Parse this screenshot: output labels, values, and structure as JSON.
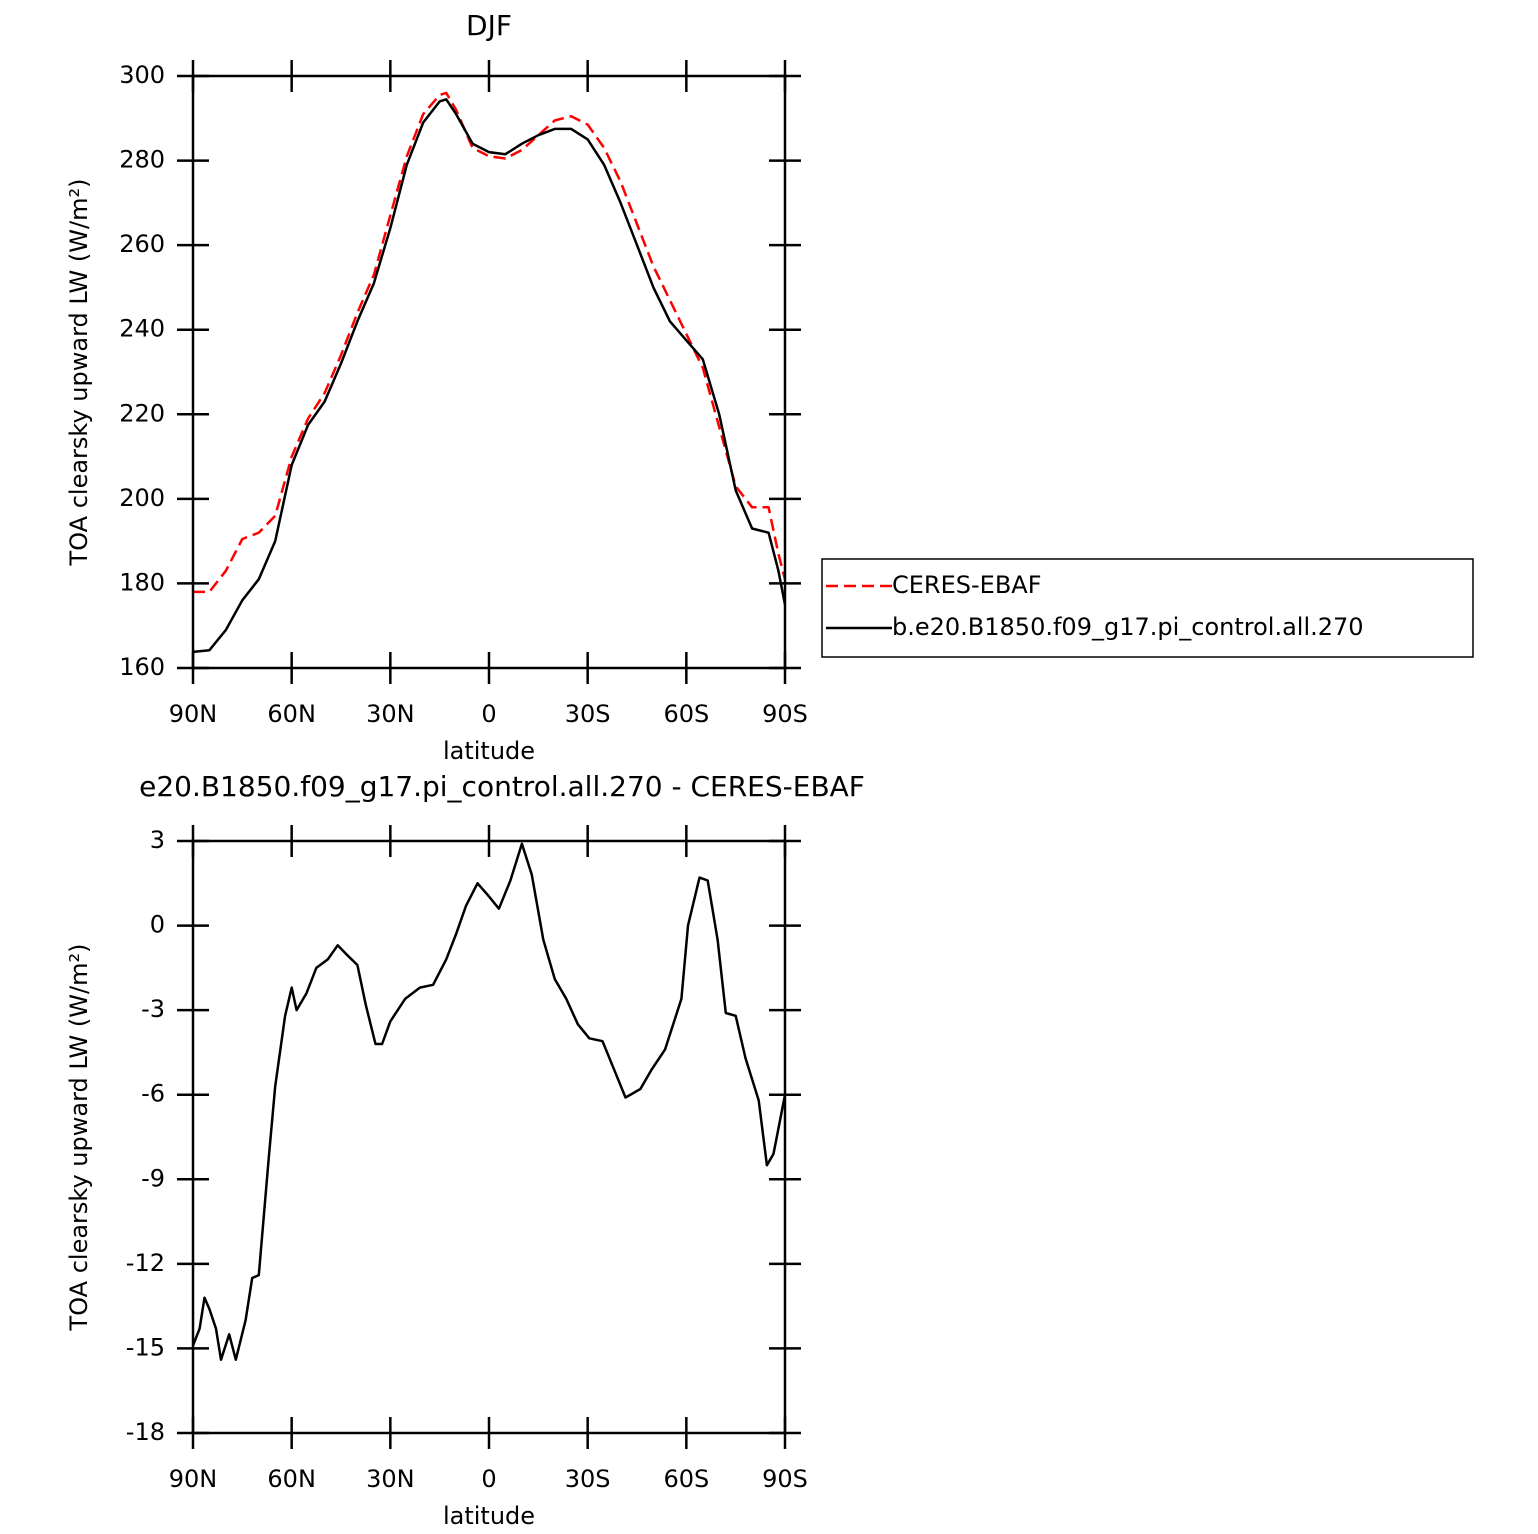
{
  "chart_data": [
    {
      "type": "line",
      "title": "DJF",
      "xlabel": "latitude",
      "ylabel": "TOA clearsky upward LW (W/m²)",
      "x": [
        90,
        85,
        80,
        75,
        70,
        65,
        60,
        55,
        50,
        45,
        40,
        35,
        30,
        25,
        20,
        15,
        13,
        10,
        5,
        0,
        -5,
        -10,
        -15,
        -20,
        -25,
        -30,
        -35,
        -40,
        -45,
        -50,
        -55,
        -60,
        -65,
        -70,
        -75,
        -80,
        -85,
        -88,
        -90
      ],
      "series": [
        {
          "name": "CERES-EBAF",
          "color": "#ff0000",
          "dash": "dashed",
          "values": [
            178,
            178,
            183,
            190.5,
            192,
            196,
            210,
            219,
            225,
            234,
            244,
            253,
            267,
            281,
            291,
            295.5,
            296,
            292,
            283,
            281,
            280.5,
            282.5,
            286,
            289.5,
            290.5,
            288.5,
            283,
            275,
            265,
            255,
            247,
            239,
            231,
            217,
            203,
            198,
            198,
            187,
            181
          ]
        },
        {
          "name": "b.e20.B1850.f09_g17.pi_control.all.270",
          "color": "#000000",
          "dash": "solid",
          "values": [
            163.8,
            164.2,
            169,
            176,
            181,
            190,
            208,
            217.5,
            223,
            232,
            242,
            251,
            264,
            279,
            289,
            294,
            294.5,
            291,
            284,
            282,
            281.5,
            284,
            286,
            287.5,
            287.5,
            285,
            279,
            270,
            260,
            250,
            242,
            237.5,
            233,
            220,
            202,
            193,
            192,
            183,
            175
          ]
        }
      ],
      "xlim": [
        90,
        -90
      ],
      "xticks": [
        {
          "value": 90,
          "label": "90N"
        },
        {
          "value": 60,
          "label": "60N"
        },
        {
          "value": 30,
          "label": "30N"
        },
        0,
        {
          "value": -30,
          "label": "30S"
        },
        {
          "value": -60,
          "label": "60S"
        },
        {
          "value": -90,
          "label": "90S"
        }
      ],
      "ylim": [
        160,
        300
      ],
      "yticks": [
        160,
        180,
        200,
        220,
        240,
        260,
        280,
        300
      ],
      "grid": false,
      "legend": "outside-right"
    },
    {
      "type": "line",
      "title": "e20.B1850.f09_g17.pi_control.all.270 - CERES-EBAF",
      "xlabel": "latitude",
      "ylabel": "TOA clearsky upward LW (W/m²)",
      "x": [
        90,
        88,
        86.5,
        85,
        83,
        81.5,
        79,
        77,
        74,
        72,
        70,
        67,
        65,
        62,
        60,
        58.5,
        55.5,
        52.5,
        49,
        46,
        43.5,
        40,
        37.5,
        34.5,
        32.5,
        30,
        25.5,
        21,
        17,
        13,
        10,
        7,
        3.5,
        0.5,
        -3,
        -6.5,
        -10,
        -13,
        -16.5,
        -20,
        -23.5,
        -27,
        -30.5,
        -34.5,
        -38,
        -41.5,
        -46,
        -49.5,
        -53.5,
        -58.5,
        -60.5,
        -64,
        -66.5,
        -69.5,
        -72,
        -75,
        -78,
        -82,
        -84.5,
        -86.5,
        -90
      ],
      "values": [
        -14.9,
        -14.3,
        -13.2,
        -13.6,
        -14.3,
        -15.4,
        -14.5,
        -15.4,
        -14,
        -12.5,
        -12.4,
        -8.3,
        -5.7,
        -3.2,
        -2.2,
        -3,
        -2.4,
        -1.5,
        -1.2,
        -0.7,
        -1,
        -1.4,
        -2.8,
        -4.2,
        -4.2,
        -3.4,
        -2.6,
        -2.2,
        -2.1,
        -1.2,
        -0.3,
        0.7,
        1.5,
        1.1,
        0.6,
        1.6,
        2.9,
        1.8,
        -0.5,
        -1.9,
        -2.6,
        -3.5,
        -4,
        -4.1,
        -5.1,
        -6.1,
        -5.8,
        -5.1,
        -4.4,
        -2.6,
        0,
        1.7,
        1.6,
        -0.5,
        -3.1,
        -3.2,
        -4.7,
        -6.2,
        -8.5,
        -8.1,
        -6
      ],
      "color": "#000000",
      "xlim": [
        90,
        -90
      ],
      "xticks": [
        {
          "value": 90,
          "label": "90N"
        },
        {
          "value": 60,
          "label": "60N"
        },
        {
          "value": 30,
          "label": "30N"
        },
        0,
        {
          "value": -30,
          "label": "30S"
        },
        {
          "value": -60,
          "label": "60S"
        },
        {
          "value": -90,
          "label": "90S"
        }
      ],
      "ylim": [
        -18,
        3
      ],
      "yticks": [
        -18,
        -15,
        -12,
        -9,
        -6,
        -3,
        0,
        3
      ],
      "grid": false
    }
  ]
}
